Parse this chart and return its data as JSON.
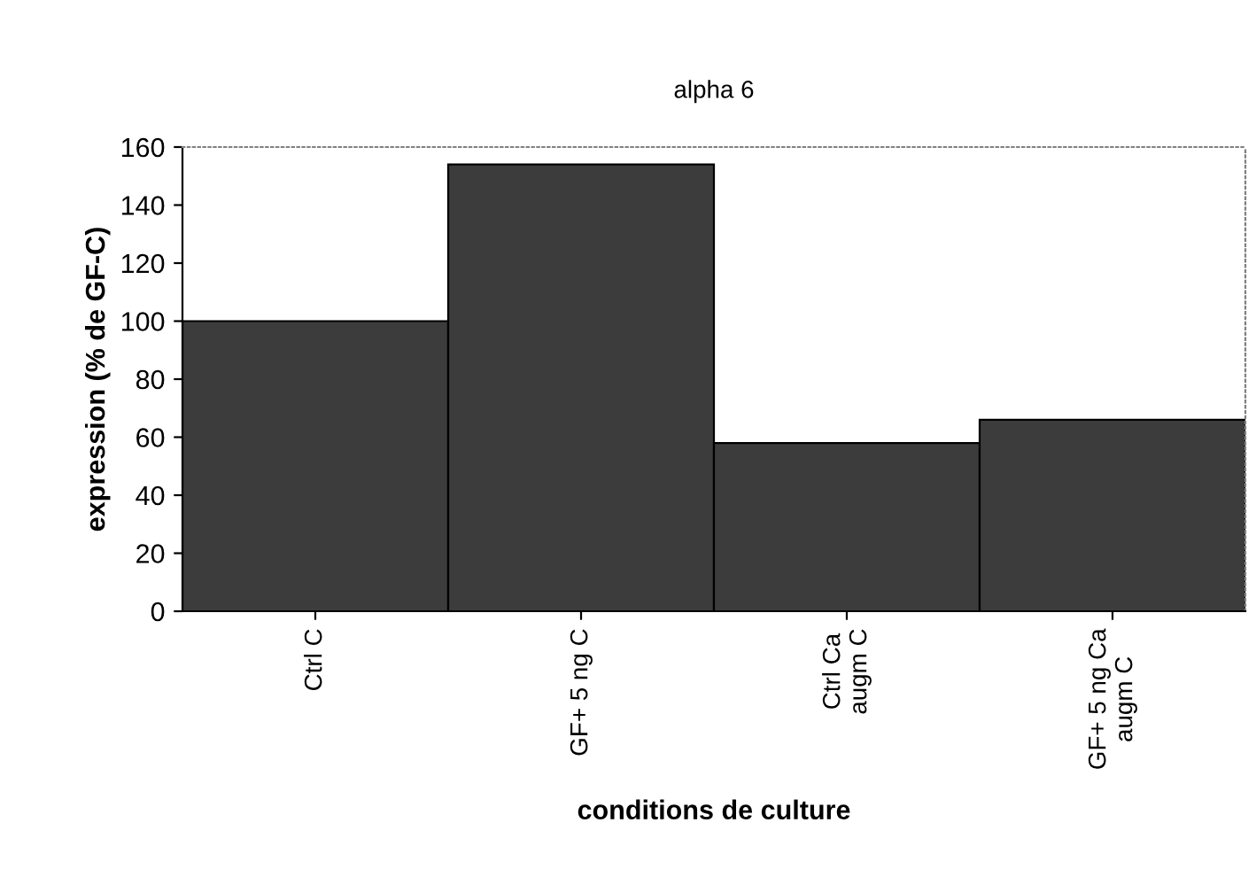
{
  "chart_data": {
    "type": "bar",
    "title": "alpha 6",
    "xlabel": "conditions de culture",
    "ylabel": "expression (% de GF-C)",
    "categories": [
      "Ctrl C",
      "GF+ 5 ng C",
      "Ctrl Ca\naugm C",
      "GF+ 5 ng Ca\naugm C"
    ],
    "values": [
      100,
      154,
      58,
      66
    ],
    "color": "#3c3c3c",
    "ylim": [
      0,
      160
    ],
    "yticks": [
      0,
      20,
      40,
      60,
      80,
      100,
      120,
      140,
      160
    ],
    "grid": false,
    "legend": false
  }
}
